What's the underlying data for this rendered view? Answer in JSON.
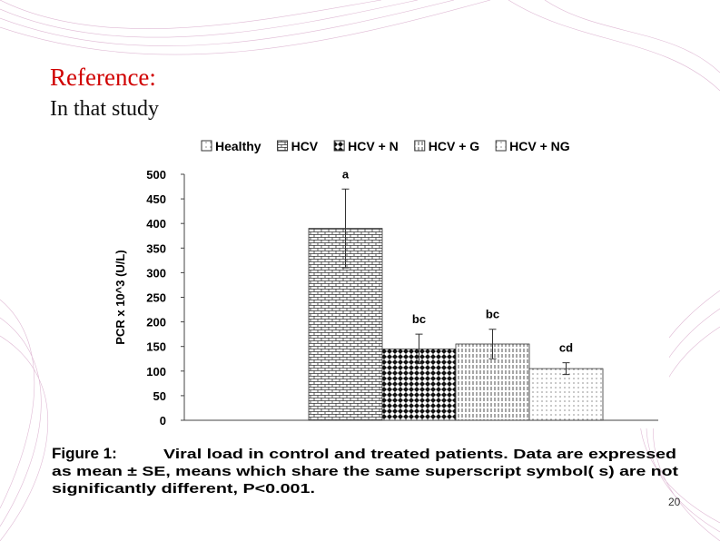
{
  "slide": {
    "heading": "Reference:",
    "subheading": "In that study",
    "page_number": "20"
  },
  "chart_data": {
    "type": "bar",
    "ylabel": "PCR x 10^3 (U/L)",
    "categories": [
      "Healthy",
      "HCV",
      "HCV + N",
      "HCV + G",
      "HCV + NG"
    ],
    "values": [
      0,
      390,
      145,
      155,
      105
    ],
    "errors": [
      null,
      80,
      30,
      30,
      12
    ],
    "annotations": [
      null,
      "a",
      "bc",
      "bc",
      "cd"
    ],
    "ylim": [
      0,
      500
    ],
    "yticks": [
      0,
      50,
      100,
      150,
      200,
      250,
      300,
      350,
      400,
      450,
      500
    ]
  },
  "caption": {
    "label": "Figure 1:",
    "lines": [
      "Viral load in control and treated patients. Data are expressed",
      "as mean ± SE, means which share the same superscript symbol( s) are not",
      "significantly different, P<0.001."
    ]
  }
}
